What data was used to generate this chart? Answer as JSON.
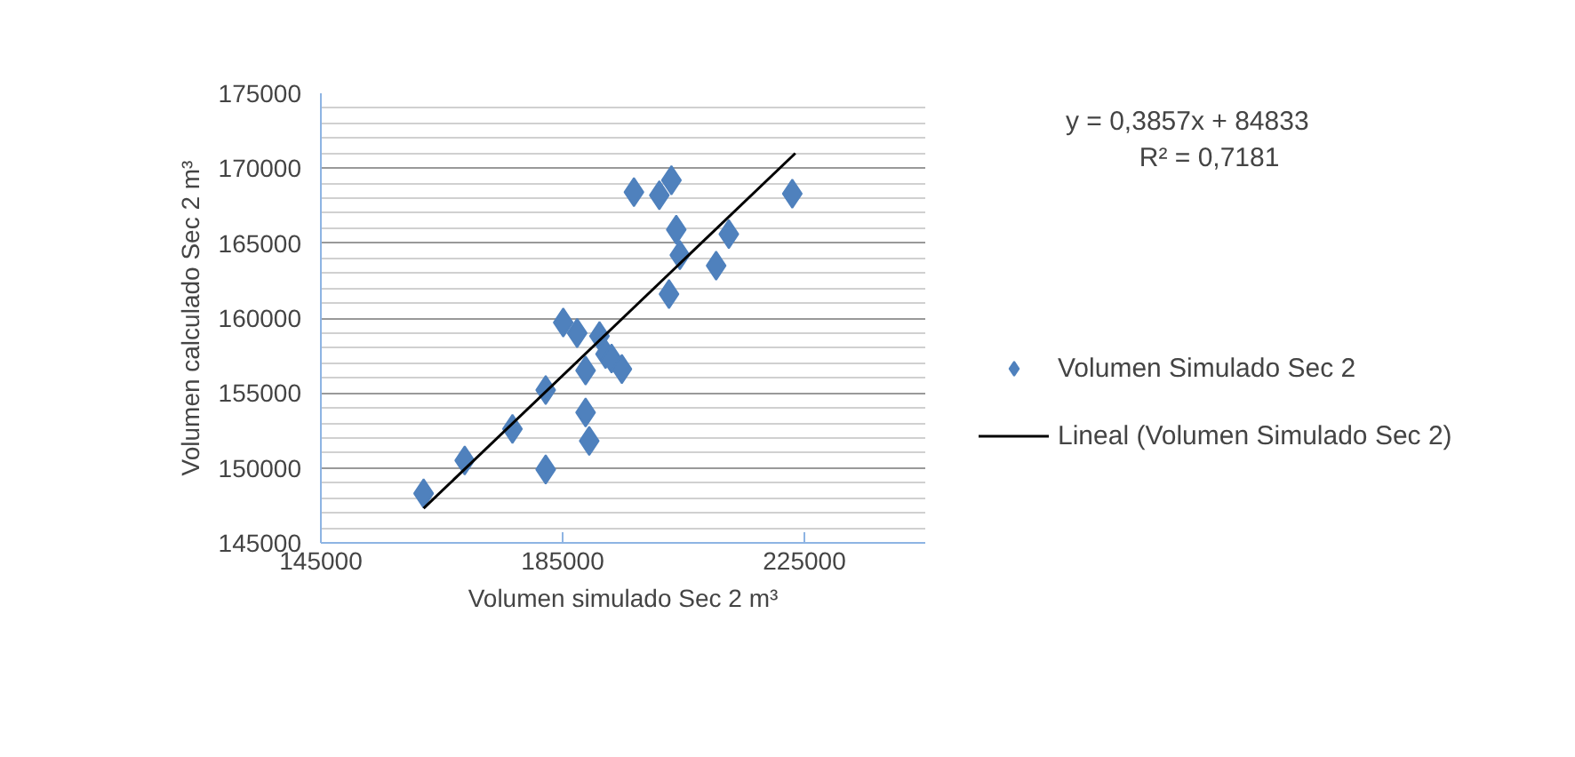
{
  "chart_data": {
    "type": "scatter",
    "xlabel": "Volumen simulado Sec 2 m³",
    "ylabel": "Volumen calculado Sec 2 m³",
    "xlim": [
      145000,
      245000
    ],
    "xticks": [
      145000,
      185000,
      225000
    ],
    "ylim": [
      145000,
      175000
    ],
    "yticks": [
      145000,
      150000,
      155000,
      160000,
      165000,
      170000,
      175000
    ],
    "grid": "y",
    "legend": "right",
    "annotations": [
      "y = 0,3857x + 84833",
      "R² = 0,7181"
    ],
    "series": [
      {
        "name": "Volumen Simulado Sec 2",
        "marker": "diamond",
        "color": "#4f81bd",
        "x": [
          162000,
          168800,
          176700,
          182200,
          182200,
          185100,
          187400,
          188800,
          188800,
          189400,
          191100,
          192100,
          193100,
          194800,
          196800,
          201000,
          203000,
          202600,
          203800,
          204400,
          210400,
          212500,
          223000
        ],
        "values": [
          148300,
          150500,
          152600,
          149900,
          155200,
          159700,
          159000,
          156500,
          153700,
          151800,
          158800,
          157600,
          157300,
          156600,
          168400,
          168200,
          169200,
          161600,
          165900,
          164200,
          163500,
          165600,
          168300
        ]
      },
      {
        "name": "Lineal (Volumen Simulado Sec 2)",
        "type": "line",
        "marker": "none",
        "color": "#000000",
        "x": [
          162000,
          223500
        ],
        "values": [
          147300,
          171000
        ]
      }
    ]
  }
}
